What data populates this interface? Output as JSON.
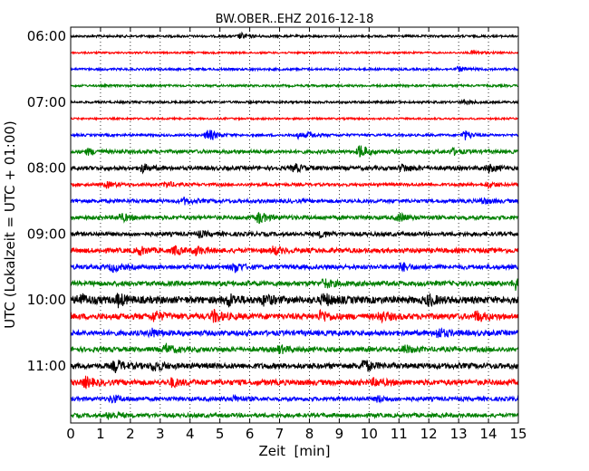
{
  "chart_data": {
    "type": "line",
    "title": "BW.OBER..EHZ 2016-12-18",
    "xlabel": "Zeit  [min]",
    "ylabel": "UTC (Lokalzeit = UTC + 01:00)",
    "xlim": [
      0,
      15
    ],
    "x_ticks": [
      "0",
      "1",
      "2",
      "3",
      "4",
      "5",
      "6",
      "7",
      "8",
      "9",
      "10",
      "11",
      "12",
      "13",
      "14",
      "15"
    ],
    "y_tick_labels": [
      "06:00",
      "07:00",
      "08:00",
      "09:00",
      "10:00",
      "11:00"
    ],
    "grid": "dotted vertical lines at each minute",
    "trace_interval_min": 15,
    "traces": [
      {
        "start": "06:00",
        "color": "#000000",
        "amp": 1.2,
        "events": [
          {
            "t": 5.7,
            "a": 3
          }
        ]
      },
      {
        "start": "06:15",
        "color": "#ff0000",
        "amp": 1.0,
        "events": [
          {
            "t": 13.5,
            "a": 2.5
          }
        ]
      },
      {
        "start": "06:30",
        "color": "#0000ff",
        "amp": 1.2,
        "events": [
          {
            "t": 13.0,
            "a": 2.5
          }
        ]
      },
      {
        "start": "06:45",
        "color": "#008000",
        "amp": 1.2,
        "events": []
      },
      {
        "start": "07:00",
        "color": "#000000",
        "amp": 1.2,
        "events": [
          {
            "t": 13.2,
            "a": 2
          }
        ]
      },
      {
        "start": "07:15",
        "color": "#ff0000",
        "amp": 1.0,
        "events": []
      },
      {
        "start": "07:30",
        "color": "#0000ff",
        "amp": 1.3,
        "events": [
          {
            "t": 4.6,
            "a": 7
          },
          {
            "t": 7.6,
            "a": 3
          },
          {
            "t": 8.0,
            "a": 2.5
          },
          {
            "t": 13.2,
            "a": 5
          }
        ]
      },
      {
        "start": "07:45",
        "color": "#008000",
        "amp": 2.0,
        "events": [
          {
            "t": 0.6,
            "a": 3
          },
          {
            "t": 9.7,
            "a": 7
          },
          {
            "t": 12.8,
            "a": 3
          }
        ]
      },
      {
        "start": "08:00",
        "color": "#000000",
        "amp": 2.2,
        "events": [
          {
            "t": 2.4,
            "a": 4
          },
          {
            "t": 7.5,
            "a": 4
          },
          {
            "t": 11.1,
            "a": 4
          },
          {
            "t": 14.0,
            "a": 4
          }
        ]
      },
      {
        "start": "08:15",
        "color": "#ff0000",
        "amp": 1.6,
        "events": [
          {
            "t": 1.2,
            "a": 3
          },
          {
            "t": 3.2,
            "a": 3
          },
          {
            "t": 14.0,
            "a": 3
          }
        ]
      },
      {
        "start": "08:30",
        "color": "#0000ff",
        "amp": 2.0,
        "events": [
          {
            "t": 3.8,
            "a": 3
          },
          {
            "t": 13.8,
            "a": 3
          }
        ]
      },
      {
        "start": "08:45",
        "color": "#008000",
        "amp": 2.2,
        "events": [
          {
            "t": 1.7,
            "a": 4
          },
          {
            "t": 6.3,
            "a": 6
          },
          {
            "t": 11.0,
            "a": 4
          }
        ]
      },
      {
        "start": "09:00",
        "color": "#000000",
        "amp": 2.2,
        "events": [
          {
            "t": 4.3,
            "a": 3
          },
          {
            "t": 8.4,
            "a": 3
          }
        ]
      },
      {
        "start": "09:15",
        "color": "#ff0000",
        "amp": 2.6,
        "events": [
          {
            "t": 2.3,
            "a": 4
          },
          {
            "t": 3.5,
            "a": 4
          },
          {
            "t": 4.2,
            "a": 4
          },
          {
            "t": 6.8,
            "a": 4
          }
        ]
      },
      {
        "start": "09:30",
        "color": "#0000ff",
        "amp": 2.4,
        "events": [
          {
            "t": 1.4,
            "a": 4
          },
          {
            "t": 5.5,
            "a": 5
          },
          {
            "t": 11.1,
            "a": 4
          }
        ]
      },
      {
        "start": "09:45",
        "color": "#008000",
        "amp": 2.6,
        "events": [
          {
            "t": 8.5,
            "a": 5
          },
          {
            "t": 14.9,
            "a": 6
          }
        ]
      },
      {
        "start": "10:00",
        "color": "#000000",
        "amp": 3.8,
        "events": [
          {
            "t": 0.3,
            "a": 6
          },
          {
            "t": 1.6,
            "a": 6
          },
          {
            "t": 5.3,
            "a": 6
          },
          {
            "t": 6.5,
            "a": 5
          },
          {
            "t": 8.5,
            "a": 6
          },
          {
            "t": 12.0,
            "a": 5
          }
        ]
      },
      {
        "start": "10:15",
        "color": "#ff0000",
        "amp": 3.2,
        "events": [
          {
            "t": 2.8,
            "a": 5
          },
          {
            "t": 4.8,
            "a": 6
          },
          {
            "t": 8.4,
            "a": 6
          },
          {
            "t": 10.4,
            "a": 5
          },
          {
            "t": 13.6,
            "a": 5
          }
        ]
      },
      {
        "start": "10:30",
        "color": "#0000ff",
        "amp": 2.8,
        "events": [
          {
            "t": 2.7,
            "a": 4
          },
          {
            "t": 12.3,
            "a": 5
          }
        ]
      },
      {
        "start": "10:45",
        "color": "#008000",
        "amp": 2.6,
        "events": [
          {
            "t": 3.2,
            "a": 5
          },
          {
            "t": 7.0,
            "a": 4
          },
          {
            "t": 11.2,
            "a": 4
          }
        ]
      },
      {
        "start": "11:00",
        "color": "#000000",
        "amp": 3.0,
        "events": [
          {
            "t": 1.5,
            "a": 6
          },
          {
            "t": 2.8,
            "a": 5
          },
          {
            "t": 9.8,
            "a": 7
          }
        ]
      },
      {
        "start": "11:15",
        "color": "#ff0000",
        "amp": 3.0,
        "events": [
          {
            "t": 0.5,
            "a": 5
          },
          {
            "t": 3.4,
            "a": 4
          },
          {
            "t": 10.2,
            "a": 4
          }
        ]
      },
      {
        "start": "11:30",
        "color": "#0000ff",
        "amp": 2.2,
        "events": [
          {
            "t": 1.4,
            "a": 4
          },
          {
            "t": 5.5,
            "a": 3
          },
          {
            "t": 10.3,
            "a": 3
          }
        ]
      },
      {
        "start": "11:45",
        "color": "#008000",
        "amp": 2.2,
        "events": [
          {
            "t": 1.3,
            "a": 4
          }
        ]
      }
    ]
  }
}
